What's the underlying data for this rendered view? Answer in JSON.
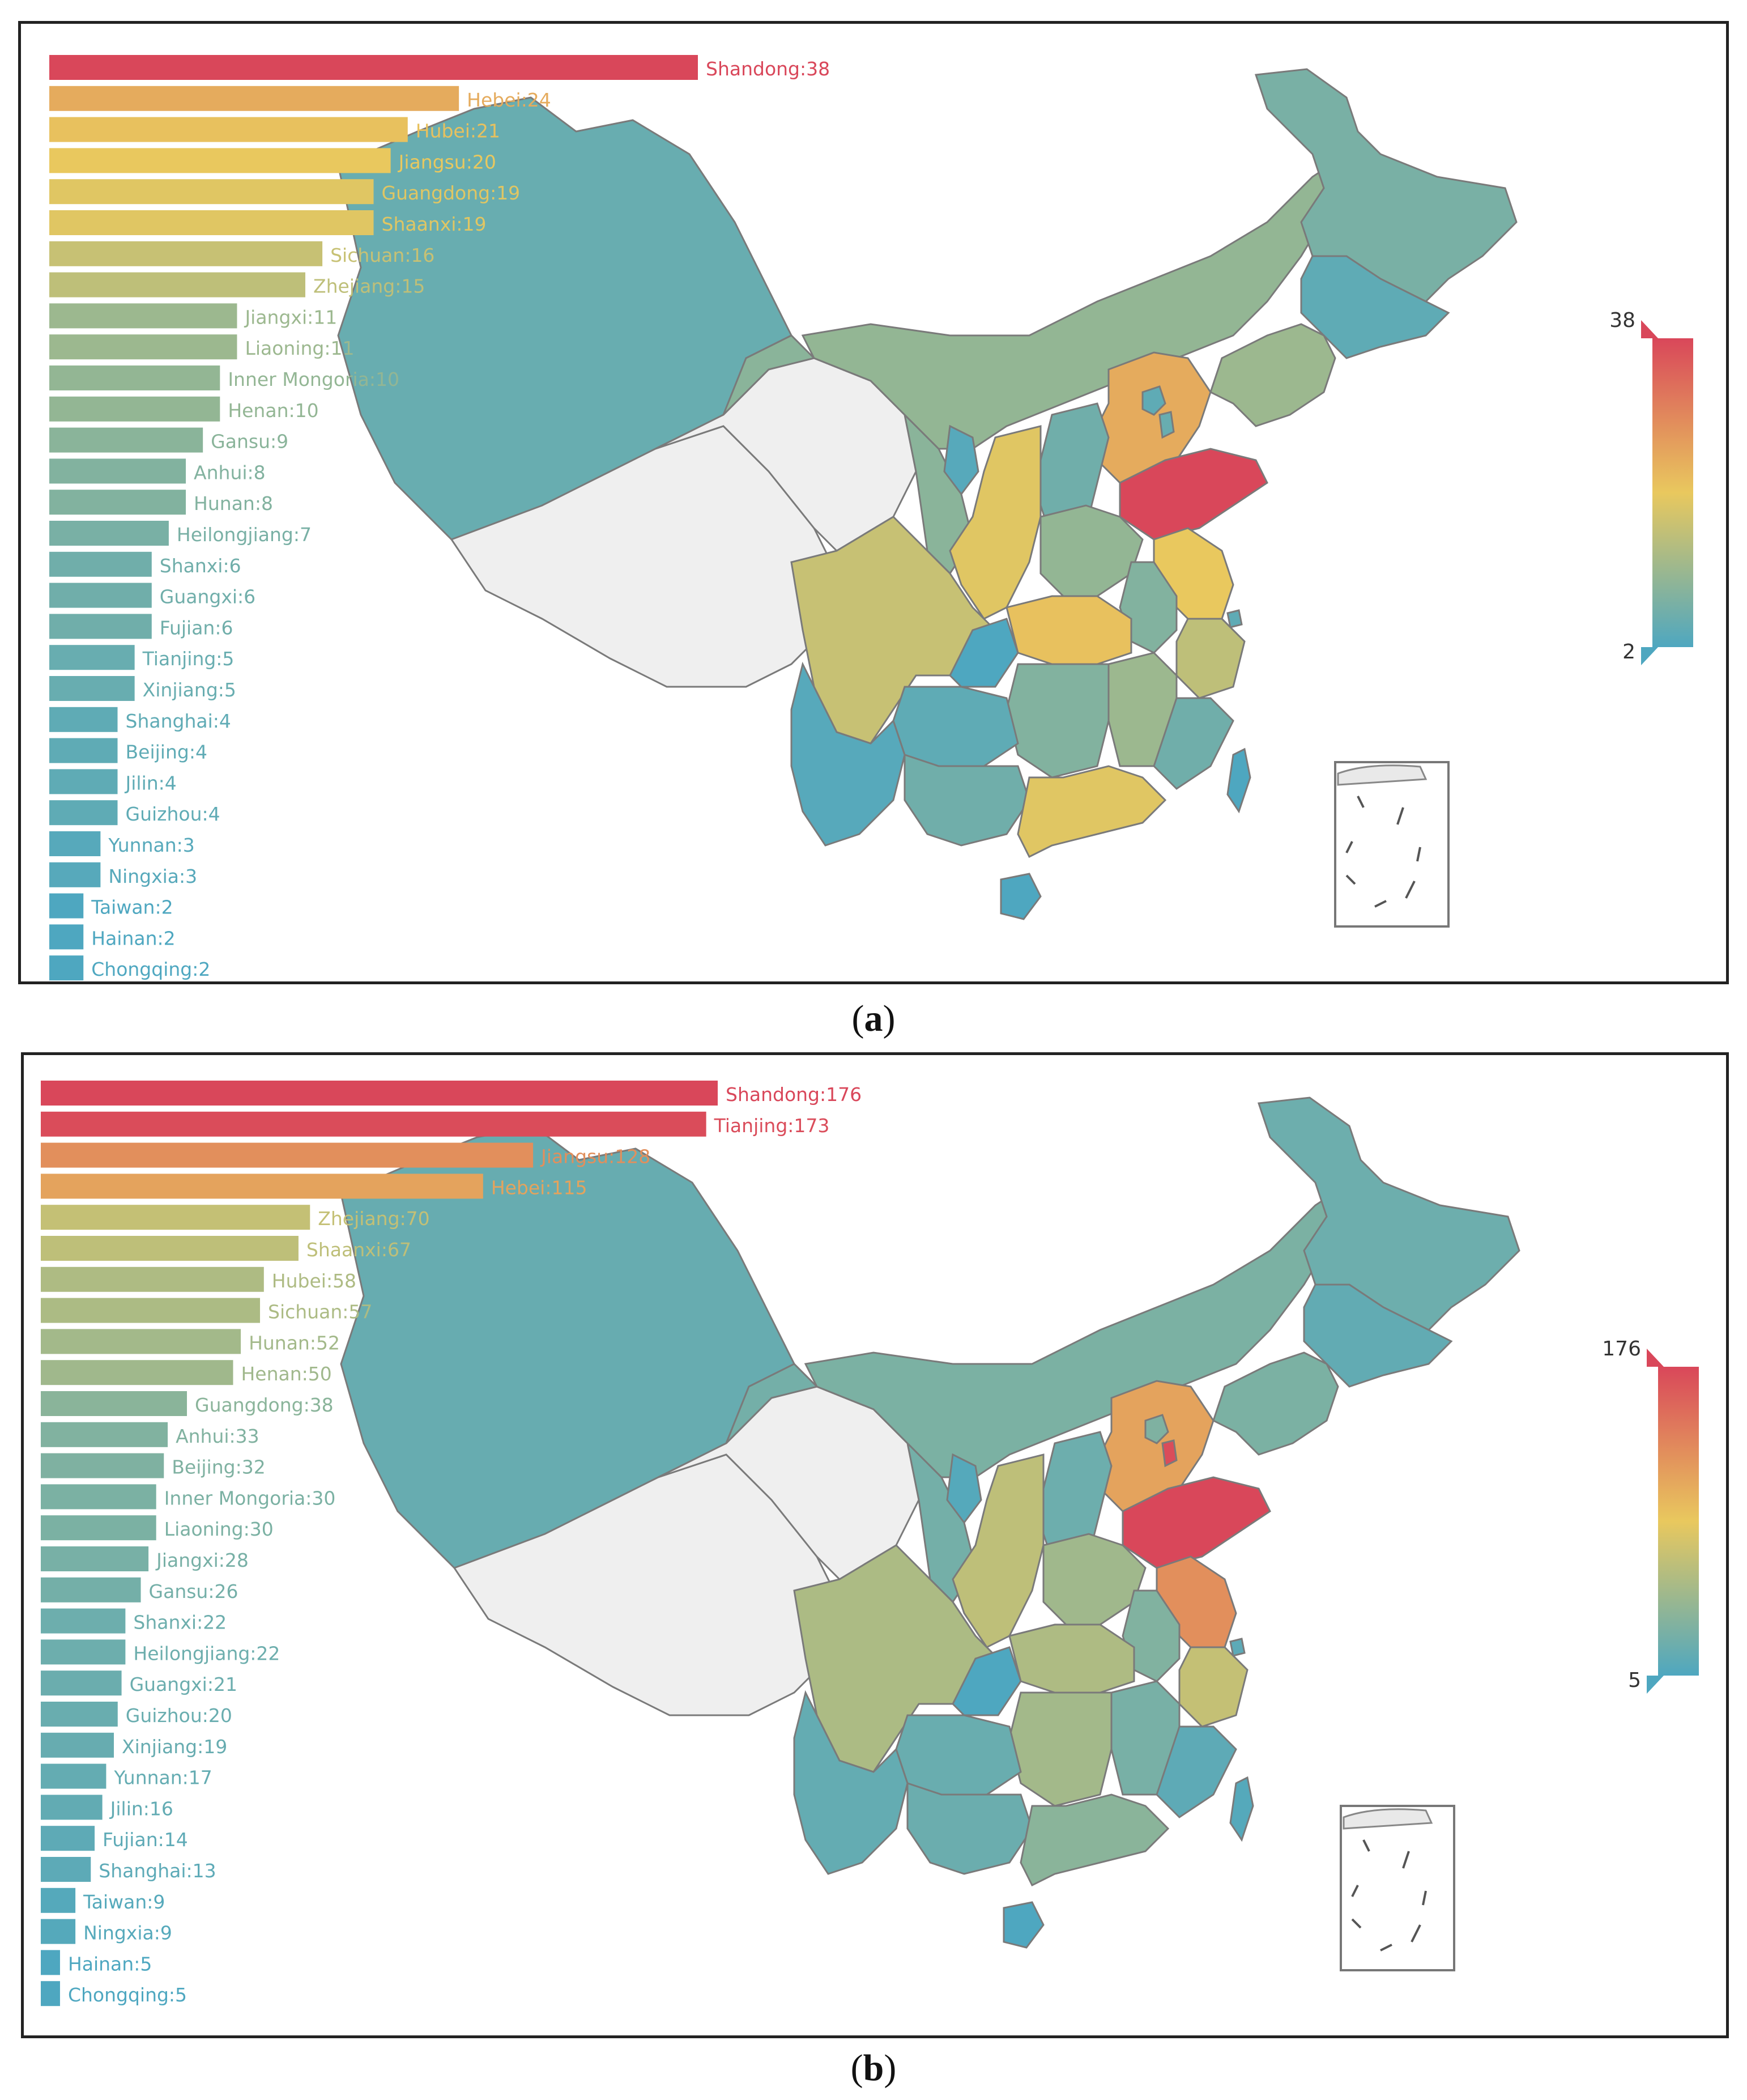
{
  "chart_data": [
    {
      "type": "bar",
      "orientation": "horizontal",
      "panel_label": "a",
      "categories": [
        "Shandong",
        "Hebei",
        "Hubei",
        "Jiangsu",
        "Guangdong",
        "Shaanxi",
        "Sichuan",
        "Zhejiang",
        "Jiangxi",
        "Liaoning",
        "Inner Mongoria",
        "Henan",
        "Gansu",
        "Anhui",
        "Hunan",
        "Heilongjiang",
        "Shanxi",
        "Guangxi",
        "Fujian",
        "Tianjing",
        "Xinjiang",
        "Shanghai",
        "Beijing",
        "Jilin",
        "Guizhou",
        "Yunnan",
        "Ningxia",
        "Taiwan",
        "Hainan",
        "Chongqing"
      ],
      "values": [
        38,
        24,
        21,
        20,
        19,
        19,
        16,
        15,
        11,
        11,
        10,
        10,
        9,
        8,
        8,
        7,
        6,
        6,
        6,
        5,
        5,
        4,
        4,
        4,
        4,
        3,
        3,
        2,
        2,
        2
      ],
      "scale": {
        "min": 2,
        "max": 38,
        "min_label": "2",
        "max_label": "38"
      },
      "map": {
        "description": "China province choropleth colored by the same values"
      }
    },
    {
      "type": "bar",
      "orientation": "horizontal",
      "panel_label": "b",
      "categories": [
        "Shandong",
        "Tianjing",
        "Jiangsu",
        "Hebei",
        "Zhejiang",
        "Shaanxi",
        "Hubei",
        "Sichuan",
        "Hunan",
        "Henan",
        "Guangdong",
        "Anhui",
        "Beijing",
        "Inner Mongoria",
        "Liaoning",
        "Jiangxi",
        "Gansu",
        "Shanxi",
        "Heilongjiang",
        "Guangxi",
        "Guizhou",
        "Xinjiang",
        "Yunnan",
        "Jilin",
        "Fujian",
        "Shanghai",
        "Taiwan",
        "Ningxia",
        "Hainan",
        "Chongqing"
      ],
      "values": [
        176,
        173,
        128,
        115,
        70,
        67,
        58,
        57,
        52,
        50,
        38,
        33,
        32,
        30,
        30,
        28,
        26,
        22,
        22,
        21,
        20,
        19,
        17,
        16,
        14,
        13,
        9,
        9,
        5,
        5
      ],
      "scale": {
        "min": 5,
        "max": 176,
        "min_label": "5",
        "max_label": "176"
      },
      "map": {
        "description": "China province choropleth colored by the same values"
      }
    }
  ],
  "palette": {
    "low": "#4ea7c0",
    "mid": "#e9c85e",
    "high": "#d9475a",
    "empty": "#efefef",
    "border": "#7a7a7a"
  }
}
